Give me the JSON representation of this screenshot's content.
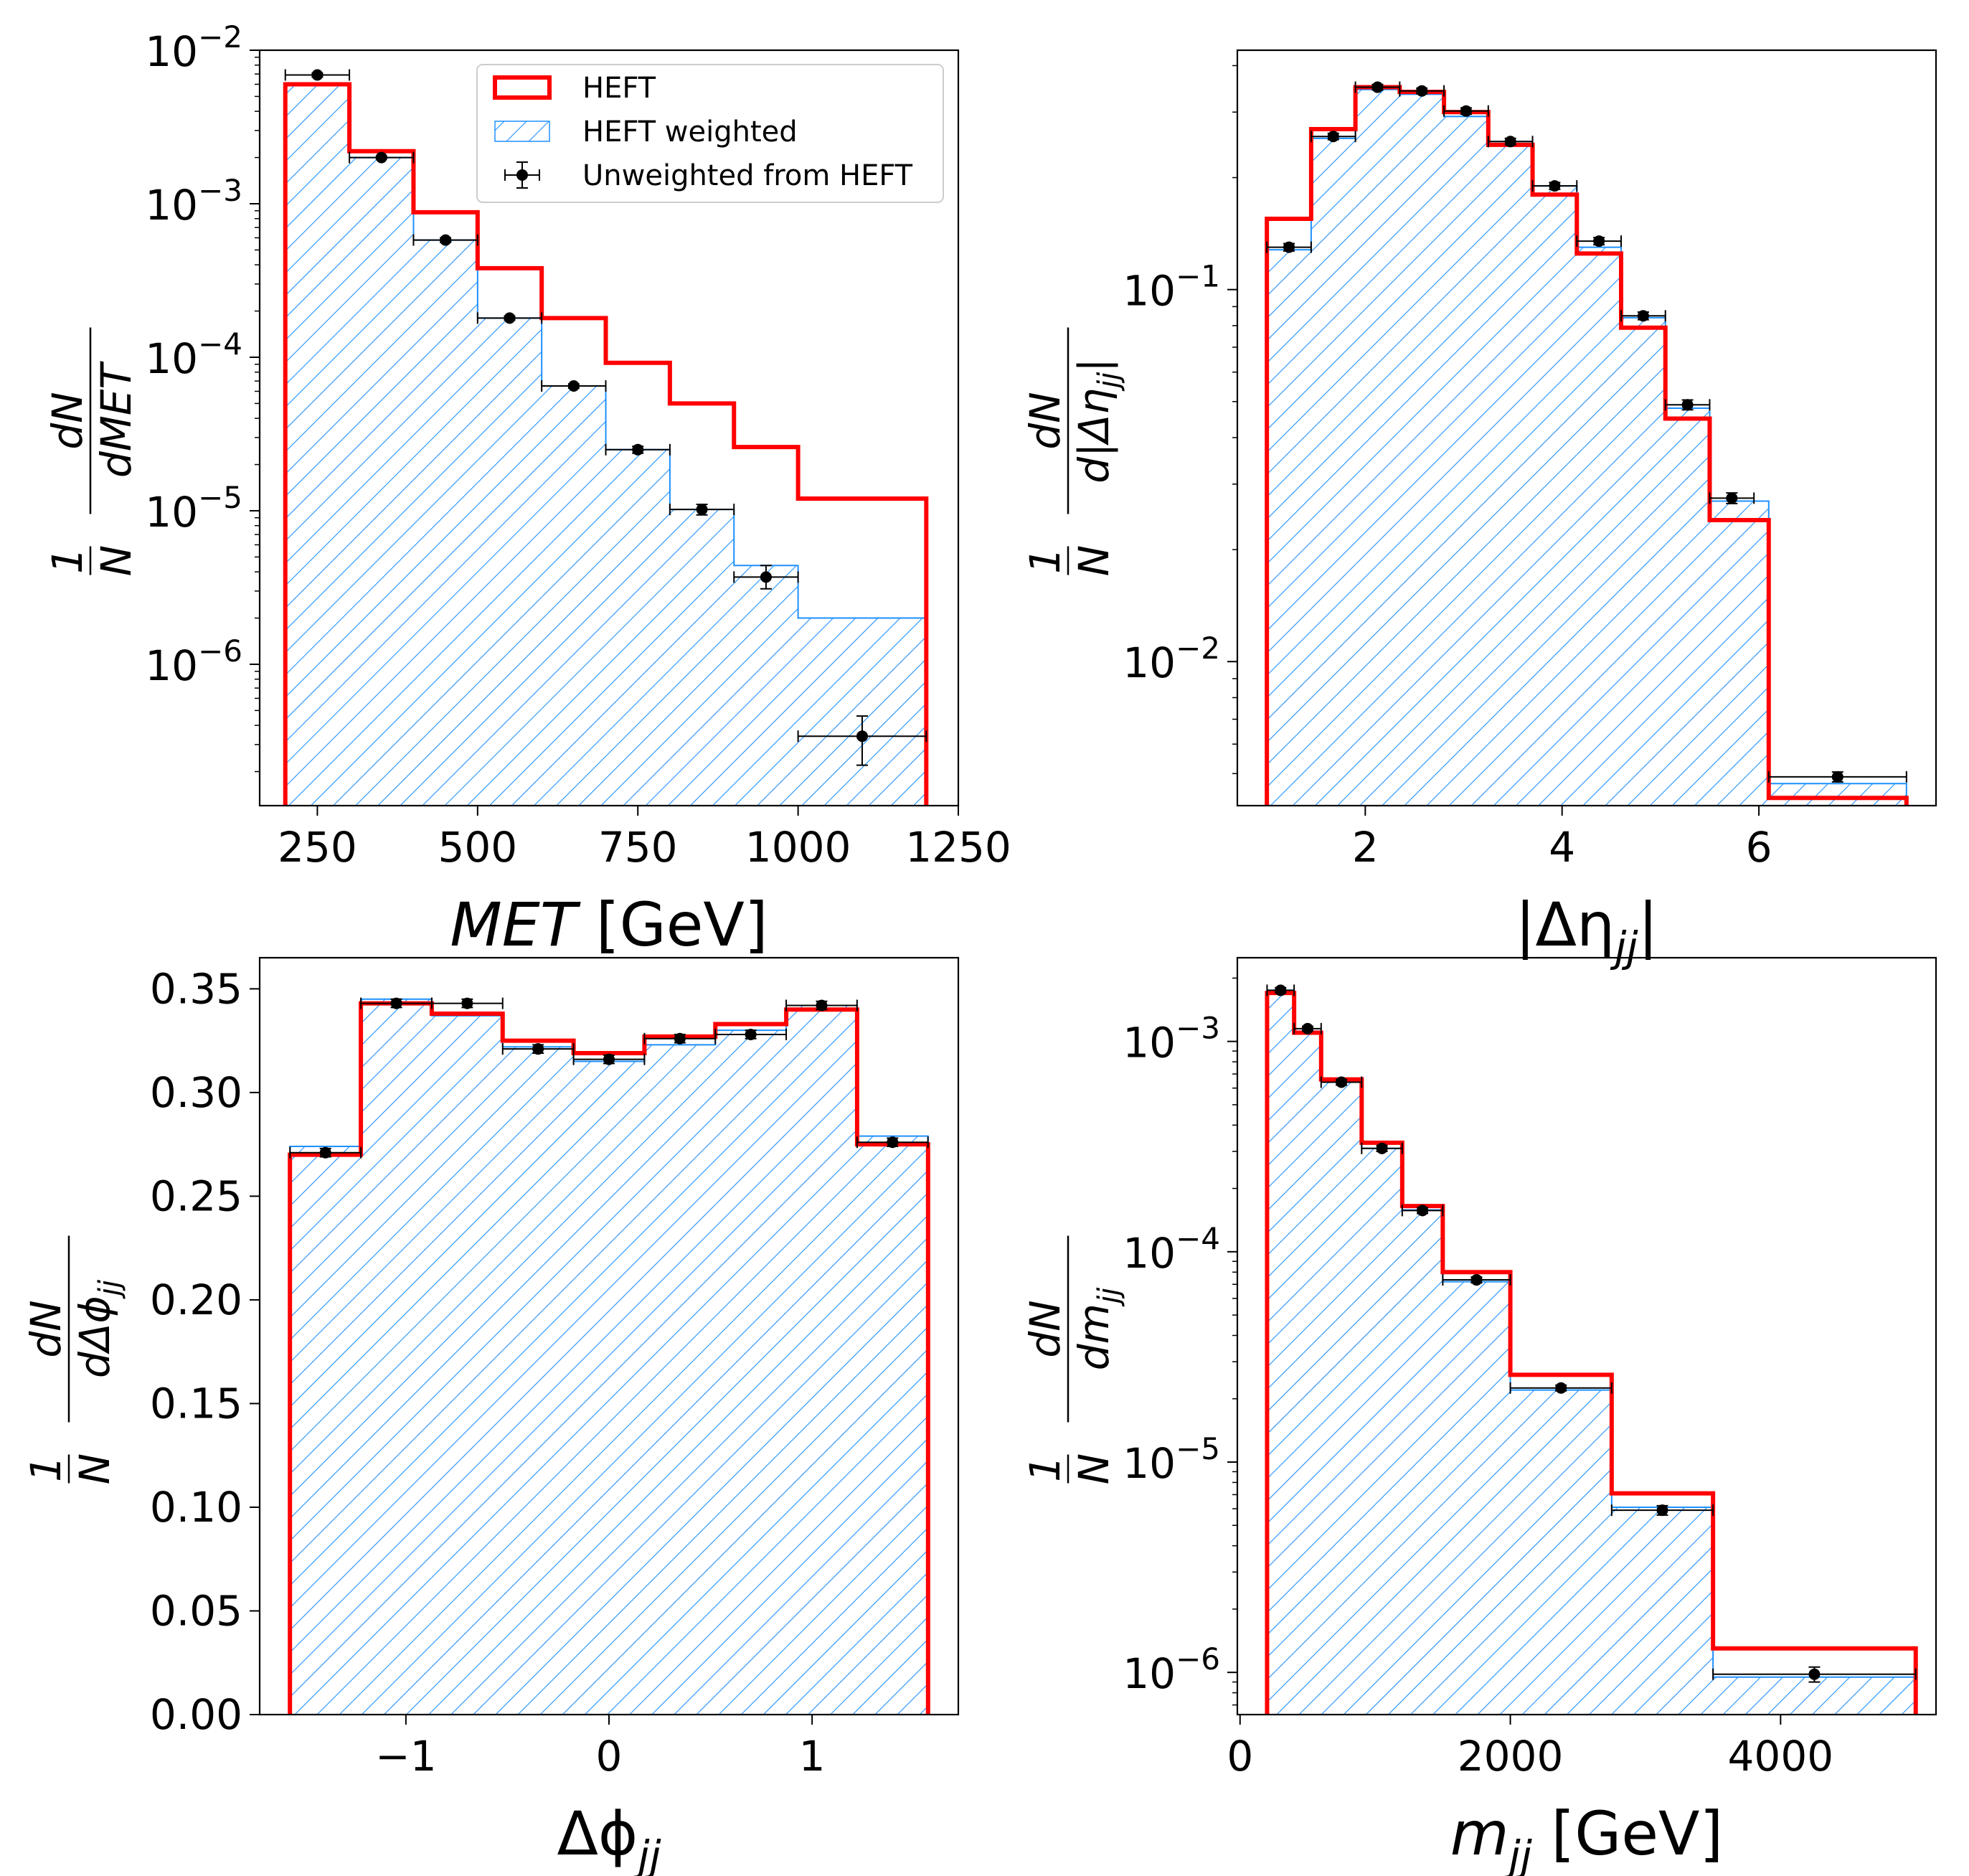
{
  "colors": {
    "heft": "#ff0000",
    "weighted": "#1e90ff",
    "unweighted": "#000000",
    "frame": "#000000",
    "background": "#ffffff"
  },
  "legend": {
    "heft": "HEFT",
    "weighted": "HEFT weighted",
    "unweighted": "Unweighted from HEFT"
  },
  "chart_data": [
    {
      "id": "met",
      "type": "histogram",
      "yscale": "log",
      "xlim": [
        160,
        1250
      ],
      "ylim": [
        1.2e-07,
        0.01
      ],
      "xticks": [
        250,
        500,
        750,
        1000,
        1250
      ],
      "xtick_labels": [
        "250",
        "500",
        "750",
        "1000",
        "1250"
      ],
      "yticks": [
        0.01,
        0.001,
        0.0001,
        1e-05,
        1e-06
      ],
      "ytick_labels": [
        {
          "base": "10",
          "exp": "−2"
        },
        {
          "base": "10",
          "exp": "−3"
        },
        {
          "base": "10",
          "exp": "−4"
        },
        {
          "base": "10",
          "exp": "−5"
        },
        {
          "base": "10",
          "exp": "−6"
        }
      ],
      "xlabel": {
        "main": "MET",
        "sub": "",
        "unit": " [GeV]",
        "italic_main": true
      },
      "ylabel": {
        "num": "dN",
        "den": "dMET",
        "pre_num": "1",
        "pre_den": "N"
      },
      "edges": [
        200,
        300,
        400,
        500,
        600,
        700,
        800,
        900,
        1000,
        1200
      ],
      "heft": [
        0.006,
        0.0022,
        0.00088,
        0.00038,
        0.00018,
        9.2e-05,
        5e-05,
        2.6e-05,
        1.2e-05
      ],
      "weighted": [
        0.006,
        0.002,
        0.00058,
        0.00018,
        6.5e-05,
        2.5e-05,
        1.02e-05,
        4.4e-06,
        2e-06
      ],
      "points": [
        {
          "x": 250,
          "xerr": 50,
          "y": 0.0069,
          "ylo": 0.0067,
          "yhi": 0.0071
        },
        {
          "x": 350,
          "xerr": 50,
          "y": 0.002,
          "ylo": 0.00196,
          "yhi": 0.00204
        },
        {
          "x": 450,
          "xerr": 50,
          "y": 0.00058,
          "ylo": 0.00056,
          "yhi": 0.0006
        },
        {
          "x": 550,
          "xerr": 50,
          "y": 0.00018,
          "ylo": 0.000175,
          "yhi": 0.000185
        },
        {
          "x": 650,
          "xerr": 50,
          "y": 6.5e-05,
          "ylo": 6.3e-05,
          "yhi": 6.7e-05
        },
        {
          "x": 750,
          "xerr": 50,
          "y": 2.5e-05,
          "ylo": 2.37e-05,
          "yhi": 2.63e-05
        },
        {
          "x": 850,
          "xerr": 50,
          "y": 1.02e-05,
          "ylo": 9.4e-06,
          "yhi": 1.1e-05
        },
        {
          "x": 950,
          "xerr": 50,
          "y": 3.7e-06,
          "ylo": 3.1e-06,
          "yhi": 4.4e-06
        },
        {
          "x": 1100,
          "xerr": 100,
          "y": 3.4e-07,
          "ylo": 2.2e-07,
          "yhi": 4.6e-07
        }
      ]
    },
    {
      "id": "deta",
      "type": "histogram",
      "yscale": "log",
      "xlim": [
        0.7,
        7.8
      ],
      "ylim": [
        0.0041,
        0.44
      ],
      "xticks": [
        2,
        4,
        6
      ],
      "xtick_labels": [
        "2",
        "4",
        "6"
      ],
      "yticks": [
        0.1,
        0.01
      ],
      "ytick_labels": [
        {
          "base": "10",
          "exp": "−1"
        },
        {
          "base": "10",
          "exp": "−2"
        }
      ],
      "xlabel": {
        "main": "|Δη",
        "sub": "jj",
        "unit": "|",
        "italic_main": false
      },
      "ylabel": {
        "num": "dN",
        "den": "d|Δη",
        "den_sub": "jj",
        "den_after": "|",
        "pre_num": "1",
        "pre_den": "N"
      },
      "edges": [
        1.0,
        1.45,
        1.9,
        2.35,
        2.8,
        3.25,
        3.7,
        4.15,
        4.6,
        5.05,
        5.5,
        5.95,
        6.1,
        7.5
      ],
      "heft": [
        0.155,
        0.27,
        0.35,
        0.34,
        0.3,
        0.245,
        0.18,
        0.125,
        0.079,
        0.045,
        0.024,
        0.024,
        0.0043
      ],
      "weighted": [
        0.128,
        0.255,
        0.345,
        0.335,
        0.292,
        0.25,
        0.19,
        0.13,
        0.084,
        0.048,
        0.027,
        0.027,
        0.0047
      ],
      "points": [
        {
          "x": 1.225,
          "xerr": 0.225,
          "y": 0.13,
          "ylo": 0.127,
          "yhi": 0.133
        },
        {
          "x": 1.675,
          "xerr": 0.225,
          "y": 0.258,
          "ylo": 0.253,
          "yhi": 0.263
        },
        {
          "x": 2.125,
          "xerr": 0.225,
          "y": 0.35,
          "ylo": 0.344,
          "yhi": 0.356
        },
        {
          "x": 2.575,
          "xerr": 0.225,
          "y": 0.342,
          "ylo": 0.336,
          "yhi": 0.348
        },
        {
          "x": 3.025,
          "xerr": 0.225,
          "y": 0.302,
          "ylo": 0.296,
          "yhi": 0.308
        },
        {
          "x": 3.475,
          "xerr": 0.225,
          "y": 0.25,
          "ylo": 0.245,
          "yhi": 0.255
        },
        {
          "x": 3.925,
          "xerr": 0.225,
          "y": 0.19,
          "ylo": 0.186,
          "yhi": 0.194
        },
        {
          "x": 4.375,
          "xerr": 0.225,
          "y": 0.135,
          "ylo": 0.132,
          "yhi": 0.138
        },
        {
          "x": 4.825,
          "xerr": 0.225,
          "y": 0.085,
          "ylo": 0.083,
          "yhi": 0.087
        },
        {
          "x": 5.275,
          "xerr": 0.225,
          "y": 0.049,
          "ylo": 0.0475,
          "yhi": 0.0505
        },
        {
          "x": 5.725,
          "xerr": 0.225,
          "y": 0.0275,
          "ylo": 0.0266,
          "yhi": 0.0284
        },
        {
          "x": 6.8,
          "xerr": 0.7,
          "y": 0.0049,
          "ylo": 0.00475,
          "yhi": 0.00505
        }
      ]
    },
    {
      "id": "dphi",
      "type": "histogram",
      "yscale": "linear",
      "xlim": [
        -1.72,
        1.72
      ],
      "ylim": [
        0.0,
        0.365
      ],
      "xticks": [
        -1,
        0,
        1
      ],
      "xtick_labels": [
        "−1",
        "0",
        "1"
      ],
      "yticks": [
        0.0,
        0.05,
        0.1,
        0.15,
        0.2,
        0.25,
        0.3,
        0.35
      ],
      "ytick_labels": [
        "0.00",
        "0.05",
        "0.10",
        "0.15",
        "0.20",
        "0.25",
        "0.30",
        "0.35"
      ],
      "xlabel": {
        "main": "Δϕ",
        "sub": "jj",
        "unit": "",
        "italic_main": false
      },
      "ylabel": {
        "num": "dN",
        "den": "dΔϕ",
        "den_sub": "jj",
        "den_after": "",
        "pre_num": "1",
        "pre_den": "N"
      },
      "edges": [
        -1.571,
        -1.2217,
        -0.8727,
        -0.5236,
        -0.1745,
        0.1745,
        0.5236,
        0.8727,
        1.2217,
        1.571
      ],
      "heft": [
        0.27,
        0.343,
        0.338,
        0.325,
        0.319,
        0.327,
        0.333,
        0.34,
        0.275
      ],
      "weighted": [
        0.274,
        0.345,
        0.337,
        0.322,
        0.315,
        0.323,
        0.33,
        0.342,
        0.279
      ],
      "points": [
        {
          "x": -1.396,
          "xerr": 0.1745,
          "y": 0.271,
          "ylo": 0.269,
          "yhi": 0.273
        },
        {
          "x": -1.047,
          "xerr": 0.1745,
          "y": 0.343,
          "ylo": 0.341,
          "yhi": 0.345
        },
        {
          "x": -0.698,
          "xerr": 0.1745,
          "y": 0.343,
          "ylo": 0.341,
          "yhi": 0.345
        },
        {
          "x": -0.349,
          "xerr": 0.1745,
          "y": 0.321,
          "ylo": 0.319,
          "yhi": 0.323
        },
        {
          "x": 0.0,
          "xerr": 0.1745,
          "y": 0.316,
          "ylo": 0.314,
          "yhi": 0.318
        },
        {
          "x": 0.349,
          "xerr": 0.1745,
          "y": 0.326,
          "ylo": 0.324,
          "yhi": 0.328
        },
        {
          "x": 0.698,
          "xerr": 0.1745,
          "y": 0.328,
          "ylo": 0.326,
          "yhi": 0.33
        },
        {
          "x": 1.047,
          "xerr": 0.1745,
          "y": 0.342,
          "ylo": 0.34,
          "yhi": 0.344
        },
        {
          "x": 1.396,
          "xerr": 0.1745,
          "y": 0.276,
          "ylo": 0.274,
          "yhi": 0.278
        }
      ]
    },
    {
      "id": "mjj",
      "type": "histogram",
      "yscale": "log",
      "xlim": [
        -20,
        5150
      ],
      "ylim": [
        6.3e-07,
        0.0025
      ],
      "xticks": [
        0,
        2000,
        4000
      ],
      "xtick_labels": [
        "0",
        "2000",
        "4000"
      ],
      "yticks": [
        0.001,
        0.0001,
        1e-05,
        1e-06
      ],
      "ytick_labels": [
        {
          "base": "10",
          "exp": "−3"
        },
        {
          "base": "10",
          "exp": "−4"
        },
        {
          "base": "10",
          "exp": "−5"
        },
        {
          "base": "10",
          "exp": "−6"
        }
      ],
      "xlabel": {
        "main": "m",
        "sub": "jj",
        "unit": " [GeV]",
        "italic_main": true
      },
      "ylabel": {
        "num": "dN",
        "den": "dm",
        "den_sub": "jj",
        "den_after": "",
        "pre_num": "1",
        "pre_den": "N"
      },
      "edges": [
        200,
        400,
        600,
        900,
        1200,
        1500,
        2000,
        2750,
        3500,
        5000
      ],
      "heft": [
        0.0017,
        0.0011,
        0.00066,
        0.00033,
        0.000165,
        8e-05,
        2.6e-05,
        7.1e-06,
        1.3e-06
      ],
      "weighted": [
        0.00175,
        0.00112,
        0.00064,
        0.00031,
        0.000158,
        7.2e-05,
        2.2e-05,
        6.1e-06,
        9.5e-07
      ],
      "points": [
        {
          "x": 300,
          "xerr": 100,
          "y": 0.00175,
          "ylo": 0.0017,
          "yhi": 0.0018
        },
        {
          "x": 500,
          "xerr": 100,
          "y": 0.00115,
          "ylo": 0.00112,
          "yhi": 0.00118
        },
        {
          "x": 750,
          "xerr": 150,
          "y": 0.00064,
          "ylo": 0.00062,
          "yhi": 0.00066
        },
        {
          "x": 1050,
          "xerr": 150,
          "y": 0.00031,
          "ylo": 0.0003,
          "yhi": 0.00032
        },
        {
          "x": 1350,
          "xerr": 150,
          "y": 0.000157,
          "ylo": 0.000152,
          "yhi": 0.000162
        },
        {
          "x": 1750,
          "xerr": 250,
          "y": 7.35e-05,
          "ylo": 7.12e-05,
          "yhi": 7.58e-05
        },
        {
          "x": 2375,
          "xerr": 375,
          "y": 2.25e-05,
          "ylo": 2.18e-05,
          "yhi": 2.32e-05
        },
        {
          "x": 3125,
          "xerr": 375,
          "y": 5.9e-06,
          "ylo": 5.6e-06,
          "yhi": 6.2e-06
        },
        {
          "x": 4250,
          "xerr": 750,
          "y": 9.8e-07,
          "ylo": 9e-07,
          "yhi": 1.06e-06
        }
      ]
    }
  ]
}
